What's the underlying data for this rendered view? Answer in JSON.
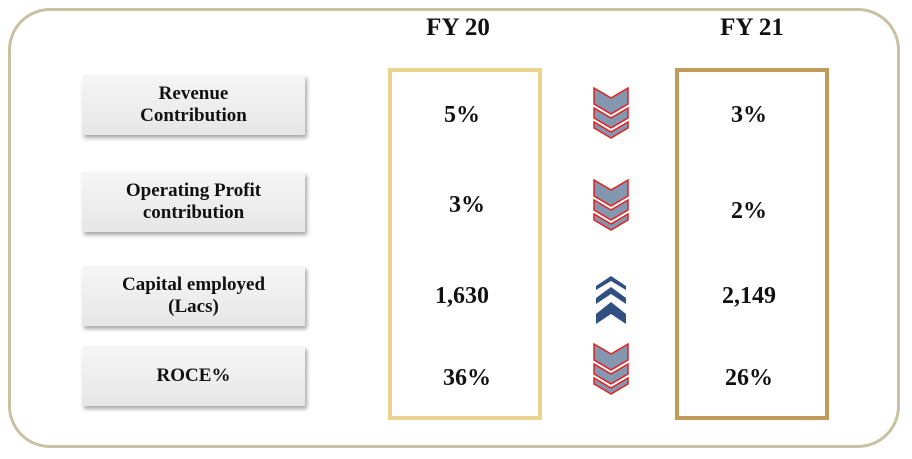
{
  "header": {
    "columns": [
      "FY 20",
      "FY 21"
    ]
  },
  "table": {
    "rows": [
      [
        "Revenue Contribution",
        "5%",
        "3%"
      ],
      [
        "Operating Profit contribution",
        "3%",
        "2%"
      ],
      [
        "Capital employed (Lacs)",
        "1,630",
        "2,149"
      ],
      [
        "ROCE%",
        "36%",
        "26%"
      ]
    ]
  }
}
